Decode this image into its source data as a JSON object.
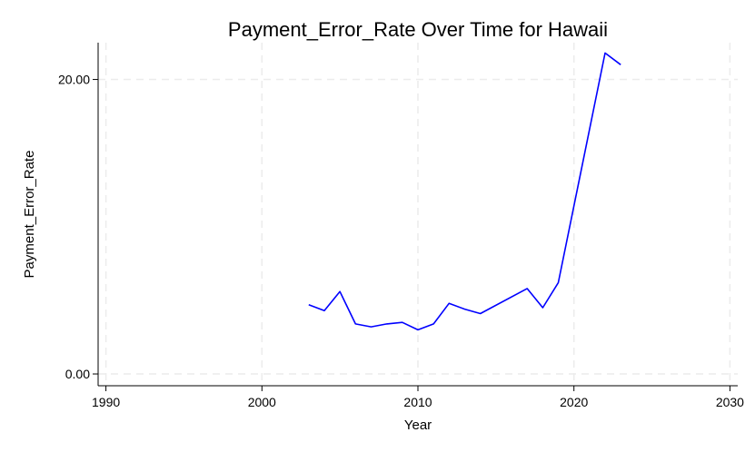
{
  "chart_data": {
    "type": "line",
    "title": "Payment_Error_Rate Over Time for Hawaii",
    "xlabel": "Year",
    "ylabel": "Payment_Error_Rate",
    "xlim": [
      1989.5,
      2030.5
    ],
    "ylim": [
      -0.8,
      22.5
    ],
    "xticks": [
      1990,
      2000,
      2010,
      2020,
      2030
    ],
    "xtick_labels": [
      "1990",
      "2000",
      "2010",
      "2020",
      "2030"
    ],
    "yticks": [
      0,
      20
    ],
    "ytick_labels": [
      "0.00",
      "20.00"
    ],
    "grid": true,
    "legend": "none",
    "series": [
      {
        "color": "#0000ff",
        "x": [
          2003,
          2004,
          2005,
          2006,
          2007,
          2008,
          2009,
          2010,
          2011,
          2012,
          2013,
          2014,
          2017,
          2018,
          2019,
          2022,
          2023
        ],
        "y": [
          4.7,
          4.3,
          5.6,
          3.4,
          3.2,
          3.4,
          3.5,
          3.0,
          3.4,
          4.8,
          4.4,
          4.1,
          5.8,
          4.5,
          6.2,
          21.8,
          21.0
        ]
      }
    ]
  }
}
